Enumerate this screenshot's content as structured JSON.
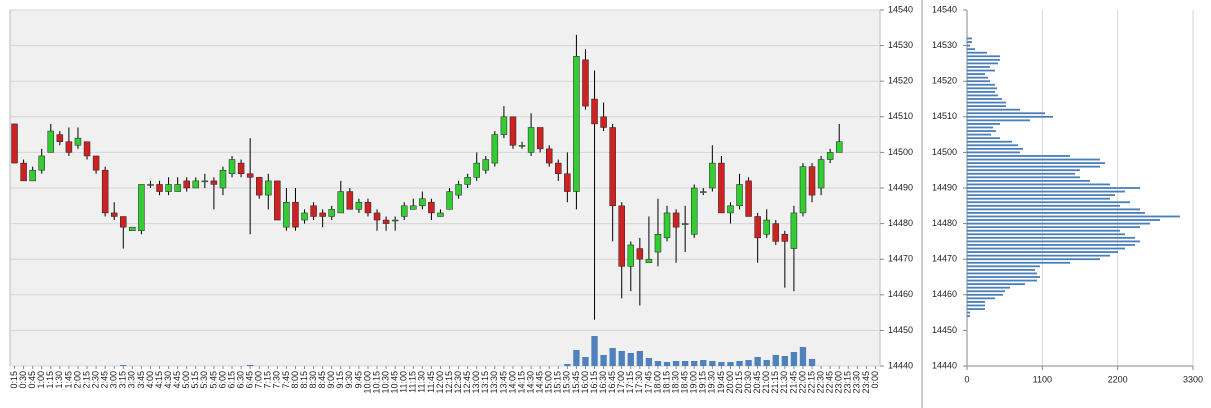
{
  "chart_data": [
    {
      "type": "candlestick",
      "categories": [
        "0:15",
        "0:30",
        "0:45",
        "1:00",
        "1:15",
        "1:30",
        "1:45",
        "2:00",
        "2:15",
        "2:30",
        "2:45",
        "3:00",
        "3:15",
        "3:30",
        "3:45",
        "4:00",
        "4:15",
        "4:30",
        "4:45",
        "5:00",
        "5:15",
        "5:30",
        "5:45",
        "6:00",
        "6:15",
        "6:30",
        "6:45",
        "7:00",
        "7:15",
        "7:30",
        "7:45",
        "8:00",
        "8:15",
        "8:30",
        "8:45",
        "9:00",
        "9:15",
        "9:30",
        "9:45",
        "10:00",
        "10:15",
        "10:30",
        "10:45",
        "11:00",
        "11:15",
        "11:30",
        "11:45",
        "12:00",
        "12:15",
        "12:30",
        "12:45",
        "13:00",
        "13:15",
        "13:30",
        "13:45",
        "14:00",
        "14:15",
        "14:30",
        "14:45",
        "15:00",
        "15:15",
        "15:30",
        "15:45",
        "16:00",
        "16:15",
        "16:30",
        "16:45",
        "17:00",
        "17:15",
        "17:30",
        "17:45",
        "18:00",
        "18:15",
        "18:30",
        "18:45",
        "19:00",
        "19:15",
        "19:30",
        "19:45",
        "20:00",
        "20:15",
        "20:30",
        "20:45",
        "21:00",
        "21:15",
        "21:30",
        "21:45",
        "22:00",
        "22:15",
        "22:30",
        "22:45",
        "23:00",
        "23:15",
        "23:30",
        "23:45",
        "0:00"
      ],
      "open": [
        14508,
        14497,
        14492,
        14495,
        14500,
        14505,
        14503,
        14502,
        14503,
        14499,
        14495,
        14483,
        14482,
        14478,
        14478,
        14491,
        14491,
        14489,
        14489,
        14492,
        14490,
        14492,
        14492,
        14490,
        14494,
        14497,
        14494,
        14493,
        14488,
        14492,
        14479,
        14486,
        14481,
        14485,
        14483,
        14482,
        14483,
        14489,
        14484,
        14486,
        14483,
        14481,
        14481,
        14482,
        14484,
        14485,
        14486,
        14482,
        14484,
        14488,
        14491,
        14493,
        14495,
        14497,
        14505,
        14510,
        14502,
        14500,
        14507,
        14501,
        14497,
        14494,
        14489,
        14526,
        14515,
        14510,
        14507,
        14485,
        14468,
        14473,
        14469,
        14472,
        14476,
        14483,
        14480,
        14477,
        14489,
        14490,
        14497,
        14483,
        14485,
        14492,
        14482,
        14477,
        14480,
        14477,
        14473,
        14483,
        14496,
        14490,
        14498,
        14500,
        null,
        null,
        null,
        null
      ],
      "high": [
        14508,
        14498,
        14496,
        14501,
        14508,
        14506,
        14507,
        14507,
        14503,
        14499,
        14496,
        14486,
        14482,
        14479,
        14491,
        14492,
        14492,
        14493,
        14493,
        14493,
        14493,
        14494,
        14493,
        14496,
        14499,
        14498,
        14504,
        14493,
        14494,
        14492,
        14490,
        14490,
        14484,
        14486,
        14484,
        14485,
        14492,
        14490,
        14487,
        14487,
        14484,
        14482,
        14482,
        14486,
        14487,
        14489,
        14487,
        14484,
        14490,
        14492,
        14494,
        14500,
        14499,
        14506,
        14513,
        14510,
        14503,
        14511,
        14507,
        14502,
        14498,
        14500,
        14533,
        14529,
        14523,
        14514,
        14508,
        14486,
        14475,
        14476,
        14482,
        14487,
        14485,
        14484,
        14485,
        14491,
        14490,
        14502,
        14499,
        14486,
        14494,
        14493,
        14483,
        14484,
        14481,
        14478,
        14485,
        14497,
        14497,
        14499,
        14501,
        14508,
        null,
        null,
        null,
        null
      ],
      "low": [
        14497,
        14492,
        14492,
        14494,
        14500,
        14502,
        14499,
        14501,
        14498,
        14494,
        14482,
        14481,
        14473,
        14478,
        14477,
        14490,
        14488,
        14488,
        14489,
        14489,
        14490,
        14490,
        14484,
        14488,
        14493,
        14493,
        14477,
        14487,
        14484,
        14481,
        14478,
        14478,
        14480,
        14481,
        14479,
        14481,
        14483,
        14484,
        14483,
        14482,
        14478,
        14478,
        14478,
        14481,
        14484,
        14484,
        14481,
        14482,
        14484,
        14487,
        14490,
        14492,
        14494,
        14496,
        14504,
        14501,
        14501,
        14499,
        14500,
        14496,
        14492,
        14486,
        14484,
        14512,
        14453,
        14506,
        14475,
        14459,
        14461,
        14457,
        14469,
        14468,
        14475,
        14469,
        14472,
        14476,
        14488,
        14489,
        14483,
        14480,
        14484,
        14482,
        14469,
        14476,
        14474,
        14462,
        14461,
        14482,
        14486,
        14488,
        14497,
        14500,
        null,
        null,
        null,
        null
      ],
      "close": [
        14497,
        14492,
        14495,
        14499,
        14506,
        14503,
        14500,
        14504,
        14499,
        14495,
        14483,
        14482,
        14479,
        14479,
        14491,
        14491,
        14489,
        14491,
        14491,
        14490,
        14492,
        14492,
        14491,
        14495,
        14498,
        14494,
        14493,
        14488,
        14492,
        14481,
        14486,
        14479,
        14483,
        14482,
        14482,
        14484,
        14489,
        14484,
        14486,
        14483,
        14481,
        14480,
        14481,
        14485,
        14485,
        14487,
        14483,
        14483,
        14489,
        14491,
        14493,
        14497,
        14498,
        14505,
        14510,
        14502,
        14502,
        14507,
        14501,
        14497,
        14494,
        14489,
        14527,
        14513,
        14508,
        14507,
        14485,
        14468,
        14474,
        14470,
        14470,
        14477,
        14483,
        14479,
        14480,
        14490,
        14489,
        14497,
        14483,
        14485,
        14491,
        14482,
        14476,
        14481,
        14475,
        14475,
        14483,
        14496,
        14488,
        14498,
        14500,
        14503,
        null,
        null,
        null,
        null
      ],
      "volume": [
        0,
        0,
        0,
        0,
        0,
        0,
        0,
        0,
        0,
        0,
        0,
        0,
        1,
        0,
        0,
        0,
        0,
        0,
        0,
        0,
        0,
        0,
        0,
        0,
        0,
        0,
        1,
        0,
        0,
        0,
        0,
        0,
        0,
        0,
        0,
        0,
        0,
        0,
        0,
        0,
        0,
        0,
        0,
        0,
        0,
        0,
        0,
        0,
        0,
        0,
        0,
        0,
        0,
        0,
        0,
        0,
        0,
        0,
        0,
        0,
        0,
        2,
        16,
        9,
        30,
        11,
        18,
        15,
        13,
        15,
        8,
        5,
        4,
        5,
        5,
        5,
        6,
        5,
        4,
        4,
        5,
        6,
        9,
        6,
        11,
        10,
        14,
        19,
        7,
        0,
        0,
        0,
        0,
        0,
        0,
        0
      ],
      "up_color": "#33cc33",
      "down_color": "#cc2222",
      "volume_color": "#4f81bd",
      "background": "#f0f0f0",
      "ylim": [
        14440,
        14540
      ],
      "yticks": [
        14440,
        14450,
        14460,
        14470,
        14480,
        14490,
        14500,
        14510,
        14520,
        14530,
        14540
      ],
      "grid": true
    },
    {
      "type": "bar",
      "orientation": "horizontal",
      "y": [
        14532,
        14531,
        14530,
        14529,
        14528,
        14527,
        14526,
        14525,
        14524,
        14523,
        14522,
        14521,
        14520,
        14519,
        14518,
        14517,
        14516,
        14515,
        14514,
        14513,
        14512,
        14511,
        14510,
        14509,
        14508,
        14507,
        14506,
        14505,
        14504,
        14503,
        14502,
        14501,
        14500,
        14499,
        14498,
        14497,
        14496,
        14495,
        14494,
        14493,
        14492,
        14491,
        14490,
        14489,
        14488,
        14487,
        14486,
        14485,
        14484,
        14483,
        14482,
        14481,
        14480,
        14479,
        14478,
        14477,
        14476,
        14475,
        14474,
        14473,
        14472,
        14471,
        14470,
        14469,
        14468,
        14467,
        14466,
        14465,
        14464,
        14463,
        14462,
        14461,
        14460,
        14459,
        14458,
        14457,
        14456,
        14455,
        14454
      ],
      "values": [
        73,
        73,
        44,
        117,
        292,
        482,
        482,
        453,
        336,
        409,
        263,
        307,
        336,
        409,
        438,
        409,
        453,
        511,
        569,
        569,
        774,
        1139,
        1256,
        920,
        482,
        380,
        423,
        350,
        482,
        657,
        745,
        818,
        774,
        1504,
        1942,
        2015,
        1942,
        1650,
        1577,
        1650,
        1796,
        2088,
        2526,
        2307,
        2161,
        2088,
        2380,
        2234,
        2526,
        2599,
        3110,
        2818,
        2672,
        2526,
        2234,
        2307,
        2453,
        2526,
        2453,
        2307,
        2205,
        2088,
        1942,
        1504,
        1066,
        993,
        1022,
        1066,
        1022,
        847,
        628,
        555,
        526,
        409,
        263,
        263,
        263,
        44,
        44
      ],
      "color": "#4a7eb8",
      "xlim": [
        0,
        3300
      ],
      "xticks": [
        0,
        1100,
        2200,
        3300
      ],
      "ylim": [
        14440,
        14540
      ],
      "yticks": [
        14440,
        14450,
        14460,
        14470,
        14480,
        14490,
        14500,
        14510,
        14520,
        14530,
        14540
      ],
      "grid": true
    }
  ]
}
